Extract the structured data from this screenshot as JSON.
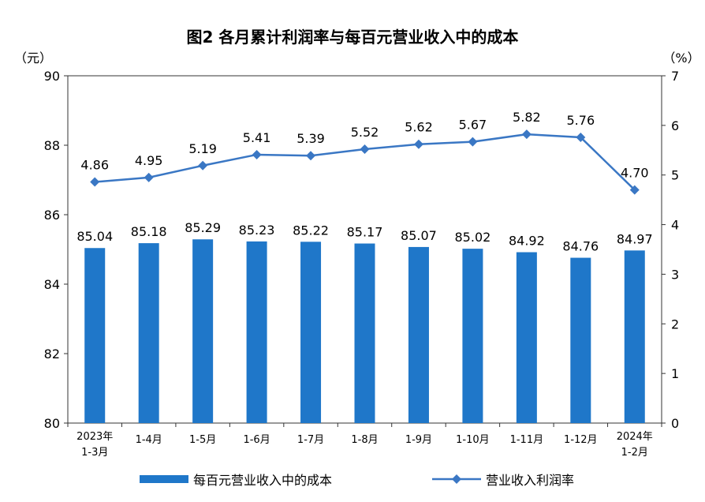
{
  "chart_data": {
    "type": "bar+line",
    "title": "图2  各月累计利润率与每百元营业收入中的成本",
    "left_axis_unit": "（元）",
    "right_axis_unit": "（%）",
    "y_left_lim": [
      80,
      90
    ],
    "y_left_ticks": [
      "80",
      "82",
      "84",
      "86",
      "88",
      "90"
    ],
    "y_right_lim": [
      0,
      7
    ],
    "y_right_ticks": [
      "0",
      "1",
      "2",
      "3",
      "4",
      "5",
      "6",
      "7"
    ],
    "categories": [
      [
        "2023年",
        "1-3月"
      ],
      [
        "1-4月"
      ],
      [
        "1-5月"
      ],
      [
        "1-6月"
      ],
      [
        "1-7月"
      ],
      [
        "1-8月"
      ],
      [
        "1-9月"
      ],
      [
        "1-10月"
      ],
      [
        "1-11月"
      ],
      [
        "1-12月"
      ],
      [
        "2024年",
        "1-2月"
      ]
    ],
    "series": [
      {
        "name": "每百元营业收入中的成本",
        "type": "bar",
        "axis": "left",
        "color": "#1f77c9",
        "values": [
          85.04,
          85.18,
          85.29,
          85.23,
          85.22,
          85.17,
          85.07,
          85.02,
          84.92,
          84.76,
          84.97
        ],
        "labels": [
          "85.04",
          "85.18",
          "85.29",
          "85.23",
          "85.22",
          "85.17",
          "85.07",
          "85.02",
          "84.92",
          "84.76",
          "84.97"
        ]
      },
      {
        "name": "营业收入利润率",
        "type": "line",
        "axis": "right",
        "color": "#3a77c4",
        "values": [
          4.86,
          4.95,
          5.19,
          5.41,
          5.39,
          5.52,
          5.62,
          5.67,
          5.82,
          5.76,
          4.7
        ],
        "labels": [
          "4.86",
          "4.95",
          "5.19",
          "5.41",
          "5.39",
          "5.52",
          "5.62",
          "5.67",
          "5.82",
          "5.76",
          "4.70"
        ]
      }
    ],
    "legend_position": "bottom",
    "grid": false
  }
}
